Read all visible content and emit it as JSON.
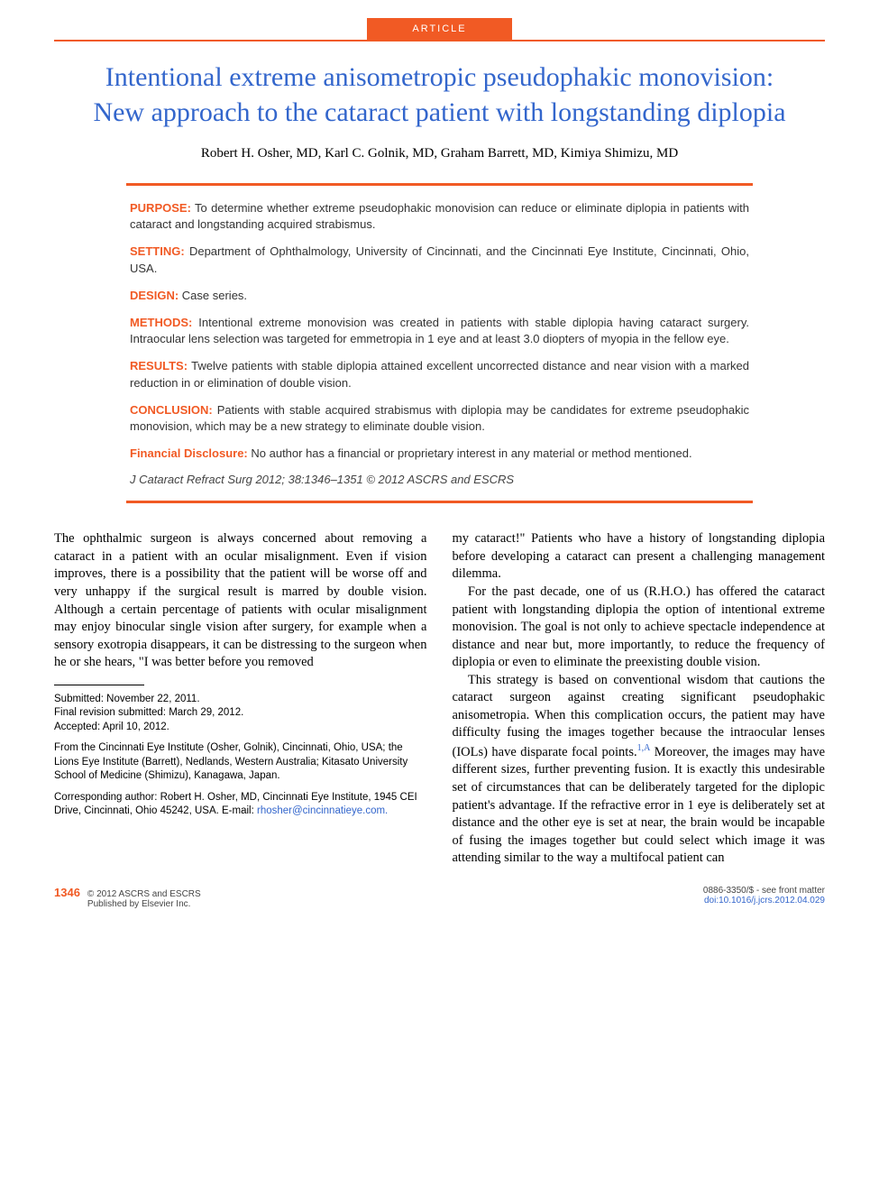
{
  "header": {
    "tag": "ARTICLE",
    "title": "Intentional extreme anisometropic pseudophakic monovision: New approach to the cataract patient with longstanding diplopia",
    "authors": "Robert H. Osher, MD, Karl C. Golnik, MD, Graham Barrett, MD, Kimiya Shimizu, MD"
  },
  "abstract": {
    "purpose": {
      "label": "PURPOSE:",
      "text": " To determine whether extreme pseudophakic monovision can reduce or eliminate diplopia in patients with cataract and longstanding acquired strabismus."
    },
    "setting": {
      "label": "SETTING:",
      "text": " Department of Ophthalmology, University of Cincinnati, and the Cincinnati Eye Institute, Cincinnati, Ohio, USA."
    },
    "design": {
      "label": "DESIGN:",
      "text": " Case series."
    },
    "methods": {
      "label": "METHODS:",
      "text": " Intentional extreme monovision was created in patients with stable diplopia having cataract surgery. Intraocular lens selection was targeted for emmetropia in 1 eye and at least 3.0 diopters of myopia in the fellow eye."
    },
    "results": {
      "label": "RESULTS:",
      "text": " Twelve patients with stable diplopia attained excellent uncorrected distance and near vision with a marked reduction in or elimination of double vision."
    },
    "conclusion": {
      "label": "CONCLUSION:",
      "text": " Patients with stable acquired strabismus with diplopia may be candidates for extreme pseudophakic monovision, which may be a new strategy to eliminate double vision."
    },
    "disclosure": {
      "label": "Financial Disclosure:",
      "text": " No author has a financial or proprietary interest in any material or method mentioned."
    },
    "citation": "J Cataract Refract Surg 2012; 38:1346–1351 © 2012 ASCRS and ESCRS"
  },
  "body": {
    "p1": "The ophthalmic surgeon is always concerned about removing a cataract in a patient with an ocular misalignment. Even if vision improves, there is a possibility that the patient will be worse off and very unhappy if the surgical result is marred by double vision. Although a certain percentage of patients with ocular misalignment may enjoy binocular single vision after surgery, for example when a sensory exotropia disappears, it can be distressing to the surgeon when he or she hears, \"I was better before you removed",
    "p1b": "my cataract!\" Patients who have a history of longstanding diplopia before developing a cataract can present a challenging management dilemma.",
    "p2": "For the past decade, one of us (R.H.O.) has offered the cataract patient with longstanding diplopia the option of intentional extreme monovision. The goal is not only to achieve spectacle independence at distance and near but, more importantly, to reduce the frequency of diplopia or even to eliminate the preexisting double vision.",
    "p3a": "This strategy is based on conventional wisdom that cautions the cataract surgeon against creating significant pseudophakic anisometropia. When this complication occurs, the patient may have difficulty fusing the images together because the intraocular lenses (IOLs) have disparate focal points.",
    "p3ref": "1,A",
    "p3b": " Moreover, the images may have different sizes, further preventing fusion. It is exactly this undesirable set of circumstances that can be deliberately targeted for the diplopic patient's advantage. If the refractive error in 1 eye is deliberately set at distance and the other eye is set at near, the brain would be incapable of fusing the images together but could select which image it was attending similar to the way a multifocal patient can"
  },
  "footnotes": {
    "submitted": "Submitted: November 22, 2011.",
    "revision": "Final revision submitted: March 29, 2012.",
    "accepted": "Accepted: April 10, 2012.",
    "affiliation": "From the Cincinnati Eye Institute (Osher, Golnik), Cincinnati, Ohio, USA; the Lions Eye Institute (Barrett), Nedlands, Western Australia; Kitasato University School of Medicine (Shimizu), Kanagawa, Japan.",
    "corresponding": "Corresponding author: Robert H. Osher, MD, Cincinnati Eye Institute, 1945 CEI Drive, Cincinnati, Ohio 45242, USA. E-mail: ",
    "email": "rhosher@cincinnatieye.com."
  },
  "footer": {
    "page": "1346",
    "copyright": "© 2012 ASCRS and ESCRS",
    "publisher": "Published by Elsevier Inc.",
    "issn": "0886-3350/$ - see front matter",
    "doi": "doi:10.1016/j.jcrs.2012.04.029"
  },
  "colors": {
    "accent": "#f15a24",
    "title": "#3366cc",
    "link": "#3366cc",
    "text": "#000000",
    "abstract_text": "#333333"
  }
}
